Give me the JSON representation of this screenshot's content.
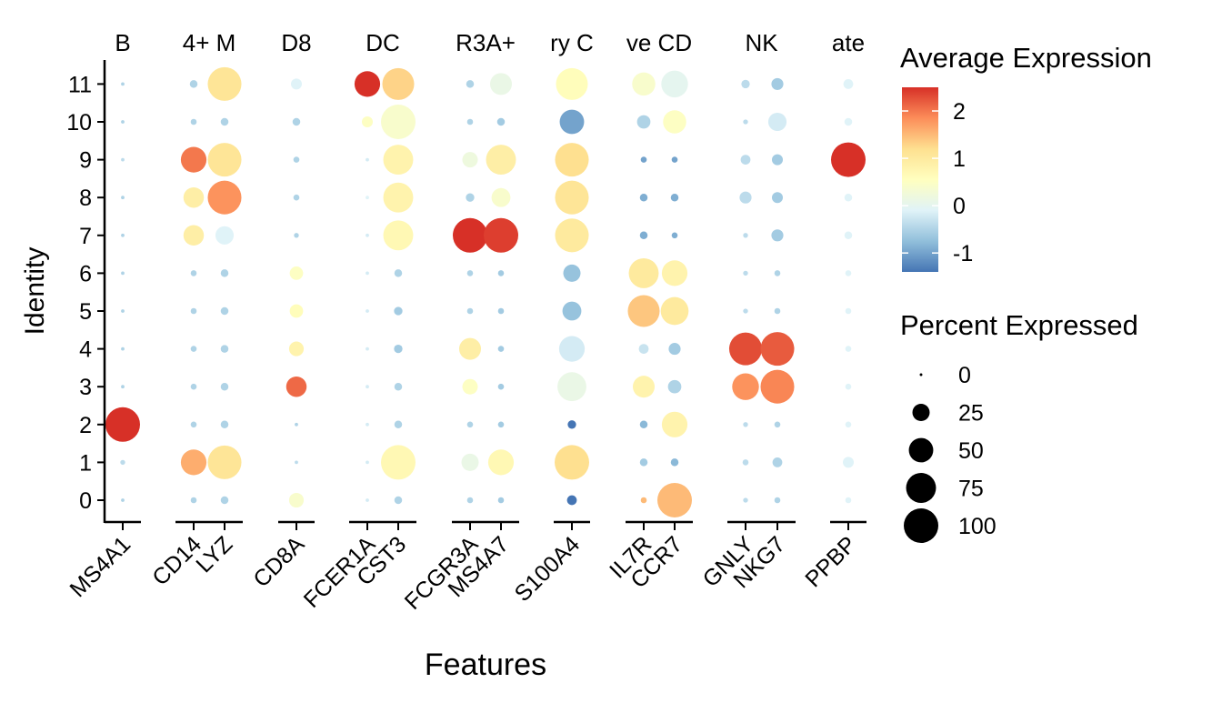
{
  "chart_data": {
    "type": "dotplot",
    "xlabel": "Features",
    "ylabel": "Identity",
    "identities": [
      "0",
      "1",
      "2",
      "3",
      "4",
      "5",
      "6",
      "7",
      "8",
      "9",
      "10",
      "11"
    ],
    "groups": [
      {
        "label": "B",
        "features": [
          "MS4A1"
        ]
      },
      {
        "label": "4+ M",
        "features": [
          "CD14",
          "LYZ"
        ]
      },
      {
        "label": "D8",
        "features": [
          "CD8A"
        ]
      },
      {
        "label": "DC",
        "features": [
          "FCER1A",
          "CST3"
        ]
      },
      {
        "label": "R3A+",
        "features": [
          "FCGR3A",
          "MS4A7"
        ]
      },
      {
        "label": "ry C",
        "features": [
          "S100A4"
        ]
      },
      {
        "label": "ve CD",
        "features": [
          "IL7R",
          "CCR7"
        ]
      },
      {
        "label": "NK",
        "features": [
          "GNLY",
          "NKG7"
        ]
      },
      {
        "label": "ate",
        "features": [
          "PPBP"
        ]
      }
    ],
    "features": [
      "MS4A1",
      "CD14",
      "LYZ",
      "CD8A",
      "FCER1A",
      "CST3",
      "FCGR3A",
      "MS4A7",
      "S100A4",
      "IL7R",
      "CCR7",
      "GNLY",
      "NKG7",
      "PPBP"
    ],
    "percent": {
      "MS4A1": [
        1,
        2,
        100,
        1,
        1,
        1,
        1,
        1,
        1,
        1,
        1,
        1
      ],
      "CD14": [
        3,
        55,
        3,
        3,
        3,
        3,
        3,
        35,
        35,
        55,
        3,
        5
      ],
      "LYZ": [
        5,
        95,
        5,
        5,
        5,
        5,
        5,
        28,
        95,
        95,
        5,
        95
      ],
      "CD8A": [
        18,
        1,
        1,
        35,
        18,
        15,
        15,
        2,
        3,
        3,
        5,
        10
      ],
      "FCER1A": [
        1,
        1,
        1,
        1,
        1,
        1,
        1,
        1,
        1,
        1,
        10,
        55
      ],
      "CST3": [
        5,
        100,
        5,
        5,
        6,
        6,
        5,
        75,
        75,
        75,
        100,
        85
      ],
      "FCGR3A": [
        3,
        25,
        3,
        20,
        40,
        3,
        3,
        100,
        6,
        20,
        3,
        5
      ],
      "MS4A7": [
        3,
        55,
        3,
        3,
        3,
        3,
        3,
        100,
        30,
        75,
        5,
        40
      ],
      "S100A4": [
        8,
        100,
        6,
        70,
        55,
        30,
        25,
        95,
        95,
        95,
        50,
        85
      ],
      "IL7R": [
        3,
        5,
        5,
        40,
        8,
        85,
        75,
        5,
        5,
        3,
        15,
        45
      ],
      "CCR7": [
        100,
        5,
        55,
        15,
        12,
        65,
        55,
        3,
        5,
        3,
        45,
        60
      ],
      "GNLY": [
        2,
        3,
        2,
        60,
        90,
        2,
        2,
        2,
        12,
        8,
        2,
        6
      ],
      "NKG7": [
        3,
        8,
        3,
        95,
        95,
        3,
        3,
        12,
        10,
        10,
        28,
        12
      ],
      "PPBP": [
        3,
        10,
        3,
        3,
        3,
        3,
        3,
        5,
        5,
        100,
        5,
        8
      ]
    },
    "avg_expression": {
      "MS4A1": [
        -0.5,
        -0.4,
        2.5,
        -0.5,
        -0.5,
        -0.5,
        -0.5,
        -0.5,
        -0.5,
        -0.4,
        -0.5,
        -0.5
      ],
      "CD14": [
        -0.5,
        1.6,
        -0.5,
        -0.5,
        -0.5,
        -0.5,
        -0.5,
        0.9,
        0.9,
        2.0,
        -0.5,
        -0.5
      ],
      "LYZ": [
        -0.5,
        1.1,
        -0.5,
        -0.5,
        -0.5,
        -0.5,
        -0.5,
        -0.1,
        1.8,
        1.1,
        -0.5,
        1.1
      ],
      "CD8A": [
        0.4,
        -0.4,
        -0.5,
        2.1,
        0.8,
        0.6,
        0.5,
        -0.5,
        -0.5,
        -0.5,
        -0.5,
        -0.1
      ],
      "FCER1A": [
        -0.2,
        -0.2,
        -0.2,
        -0.2,
        -0.2,
        -0.2,
        -0.2,
        -0.2,
        -0.1,
        -0.2,
        0.5,
        2.5
      ],
      "CST3": [
        -0.5,
        0.7,
        -0.5,
        -0.5,
        -0.6,
        -0.6,
        -0.5,
        0.7,
        0.8,
        0.8,
        0.4,
        1.3
      ],
      "FCGR3A": [
        -0.5,
        0.1,
        -0.5,
        0.5,
        0.9,
        -0.5,
        -0.5,
        2.5,
        -0.5,
        0.2,
        -0.5,
        -0.5
      ],
      "MS4A7": [
        -0.6,
        0.7,
        -0.6,
        -0.6,
        -0.6,
        -0.6,
        -0.6,
        2.4,
        0.4,
        0.9,
        -0.6,
        0.1
      ],
      "S100A4": [
        -1.5,
        1.2,
        -1.5,
        0.1,
        -0.2,
        -0.7,
        -0.7,
        1.0,
        1.1,
        1.2,
        -1.0,
        0.6
      ],
      "IL7R": [
        1.5,
        -0.6,
        -0.8,
        0.8,
        -0.3,
        1.4,
        1.0,
        -0.9,
        -0.9,
        -1.0,
        -0.5,
        0.4
      ],
      "CCR7": [
        1.5,
        -0.8,
        0.8,
        -0.5,
        -0.6,
        1.0,
        0.8,
        -0.9,
        -0.9,
        -1.0,
        0.5,
        0.0
      ],
      "GNLY": [
        -0.4,
        -0.4,
        -0.4,
        1.8,
        2.3,
        -0.4,
        -0.4,
        -0.4,
        -0.4,
        -0.4,
        -0.4,
        -0.4
      ],
      "NKG7": [
        -0.5,
        -0.5,
        -0.5,
        1.9,
        2.2,
        -0.5,
        -0.5,
        -0.6,
        -0.6,
        -0.6,
        -0.2,
        -0.6
      ],
      "PPBP": [
        -0.1,
        -0.1,
        -0.1,
        -0.1,
        -0.1,
        -0.1,
        -0.1,
        -0.1,
        -0.1,
        2.5,
        -0.1,
        -0.1
      ]
    },
    "color_legend": {
      "title": "Average Expression",
      "ticks": [
        2,
        1,
        0,
        -1
      ],
      "range": [
        -1.4,
        2.5
      ],
      "colors": [
        "#4575b4",
        "#91bfdb",
        "#e0f3f8",
        "#ffffbf",
        "#fee090",
        "#fc8d59",
        "#d73027"
      ]
    },
    "size_legend": {
      "title": "Percent Expressed",
      "values": [
        0,
        25,
        50,
        75,
        100
      ]
    }
  }
}
